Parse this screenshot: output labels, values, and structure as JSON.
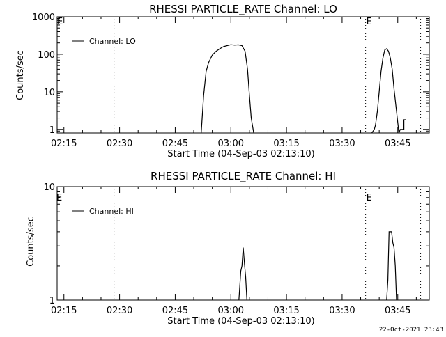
{
  "footer_stamp": "22-Oct-2021 23:43",
  "chart_data": [
    {
      "type": "line",
      "title": "RHESSI PARTICLE_RATE Channel: LO",
      "xlabel": "Start Time (04-Sep-03 02:13:10)",
      "ylabel": "Counts/sec",
      "yscale": "log",
      "ylim": [
        0.8,
        1000
      ],
      "xlim": [
        "02:13:10",
        "03:53:30"
      ],
      "x_ticks": [
        "02:15",
        "02:30",
        "02:45",
        "03:00",
        "03:15",
        "03:30",
        "03:45"
      ],
      "y_ticks": [
        {
          "value": 1,
          "label": "1"
        },
        {
          "value": 10,
          "label": "10"
        },
        {
          "value": 100,
          "label": "100"
        },
        {
          "value": 1000,
          "label": "1000"
        }
      ],
      "legend": {
        "label": "Channel: LO",
        "placement": "top-left"
      },
      "markers": [
        {
          "time": "02:28:30",
          "label": ""
        },
        {
          "time": "03:36:20",
          "label": "E"
        },
        {
          "time": "03:51:10",
          "label": ""
        }
      ],
      "corner_label": "E",
      "grid": false,
      "series": [
        {
          "x": [
            "02:52:00",
            "02:52:40",
            "02:53:20",
            "02:54:00",
            "02:55:00",
            "02:56:00",
            "02:57:00",
            "02:58:00",
            "02:59:00",
            "03:00:00",
            "03:01:00",
            "03:02:00",
            "03:03:00",
            "03:03:50",
            "03:04:30",
            "03:05:00",
            "03:05:30",
            "03:06:10"
          ],
          "y": [
            0.8,
            8,
            35,
            60,
            95,
            120,
            140,
            160,
            170,
            180,
            175,
            178,
            170,
            120,
            40,
            8,
            2,
            0.8
          ]
        },
        {
          "x": [
            "03:38:00",
            "03:38:40",
            "03:39:00",
            "03:39:30",
            "03:40:00",
            "03:40:30",
            "03:41:00",
            "03:41:30",
            "03:42:00",
            "03:42:30",
            "03:43:00",
            "03:43:30",
            "03:44:00",
            "03:44:20",
            "03:44:40",
            "03:45:00",
            "03:45:20",
            "03:45:40",
            "03:46:10",
            "03:46:40",
            "03:46:40",
            "03:47:10"
          ],
          "y": [
            0.8,
            1,
            1.3,
            3,
            10,
            35,
            80,
            130,
            140,
            120,
            80,
            40,
            12,
            6,
            3,
            1.5,
            0.8,
            1,
            1,
            1,
            1.8,
            1.8
          ]
        }
      ]
    },
    {
      "type": "line",
      "title": "RHESSI PARTICLE_RATE Channel: HI",
      "xlabel": "Start Time (04-Sep-03 02:13:10)",
      "ylabel": "Counts/sec",
      "yscale": "log",
      "ylim": [
        1,
        10
      ],
      "xlim": [
        "02:13:10",
        "03:53:30"
      ],
      "x_ticks": [
        "02:15",
        "02:30",
        "02:45",
        "03:00",
        "03:15",
        "03:30",
        "03:45"
      ],
      "y_ticks": [
        {
          "value": 1,
          "label": "1"
        },
        {
          "value": 10,
          "label": "10"
        }
      ],
      "legend": {
        "label": "Channel: HI",
        "placement": "top-left"
      },
      "markers": [
        {
          "time": "02:28:30",
          "label": ""
        },
        {
          "time": "03:36:20",
          "label": "E"
        },
        {
          "time": "03:51:10",
          "label": ""
        }
      ],
      "corner_label": "E",
      "grid": false,
      "series": [
        {
          "x": [
            "03:02:10",
            "03:02:40",
            "03:03:00",
            "03:03:20",
            "03:03:40",
            "03:04:00",
            "03:04:20"
          ],
          "y": [
            1,
            1.8,
            2,
            2.9,
            2.1,
            1.6,
            1
          ]
        },
        {
          "x": [
            "03:42:00",
            "03:42:20",
            "03:42:40",
            "03:43:00",
            "03:43:20",
            "03:43:40",
            "03:44:00",
            "03:44:20",
            "03:44:40"
          ],
          "y": [
            1,
            1.5,
            4.0,
            4.0,
            4.0,
            3.2,
            2.9,
            2.0,
            1
          ]
        }
      ]
    }
  ]
}
